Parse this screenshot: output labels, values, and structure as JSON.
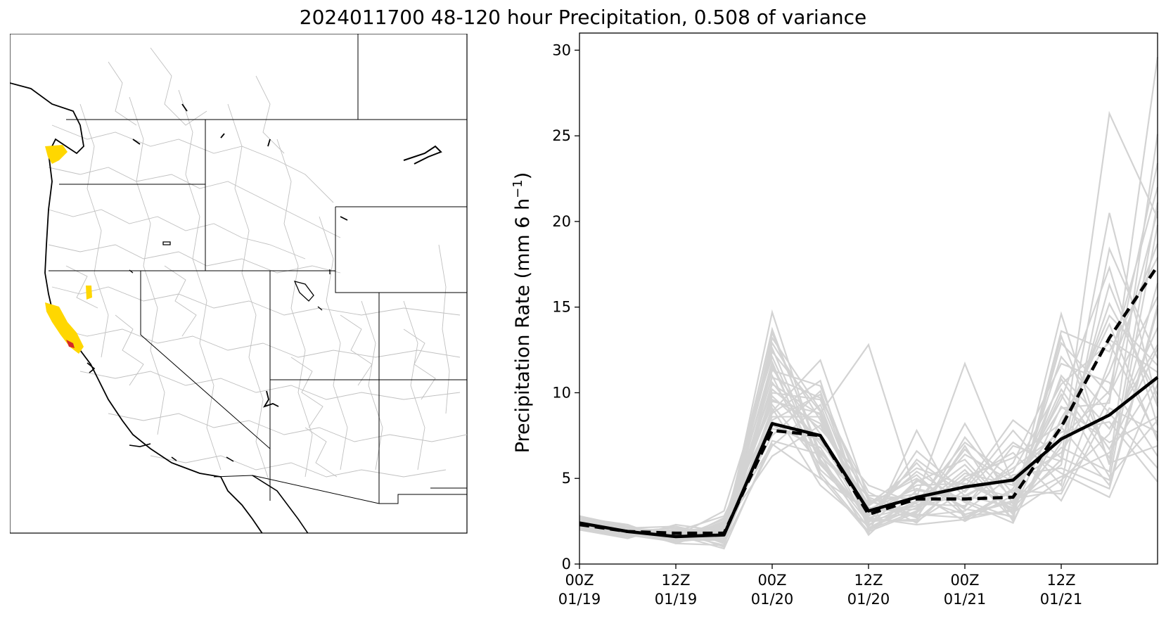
{
  "figure": {
    "title": "2024011700 48-120 hour Precipitation, 0.508 of variance"
  },
  "map": {
    "description_colors": {
      "border": "#000000",
      "basins": "#bdbdbd",
      "highlight_yellow": "#ffd700",
      "highlight_red": "#d62728"
    }
  },
  "chart_data": {
    "type": "line",
    "ylabel_text": "Precipitation Rate (mm 6 h",
    "ylabel_superscript": "−1",
    "ylabel_close": ")",
    "ylim": [
      0,
      31
    ],
    "yticks": [
      0,
      5,
      10,
      15,
      20,
      25,
      30
    ],
    "xlim": [
      0,
      18
    ],
    "xticks": [
      {
        "x": 0,
        "line1": "00Z",
        "line2": "01/19"
      },
      {
        "x": 3,
        "line1": "12Z",
        "line2": "01/19"
      },
      {
        "x": 6,
        "line1": "00Z",
        "line2": "01/20"
      },
      {
        "x": 9,
        "line1": "12Z",
        "line2": "01/20"
      },
      {
        "x": 12,
        "line1": "00Z",
        "line2": "01/21"
      },
      {
        "x": 15,
        "line1": "12Z",
        "line2": "01/21"
      }
    ],
    "x": [
      0,
      1.5,
      3,
      4.5,
      6,
      7.5,
      9,
      10.5,
      12,
      13.5,
      15,
      16.5,
      18
    ],
    "ensemble_color": "#d3d3d3",
    "ensemble_mean": {
      "style": "solid",
      "color": "#000000",
      "values": [
        2.4,
        1.9,
        1.6,
        1.7,
        8.2,
        7.5,
        3.1,
        3.9,
        4.5,
        4.9,
        7.3,
        8.7,
        10.9
      ]
    },
    "reconstruction": {
      "style": "dashed",
      "color": "#000000",
      "values": [
        2.3,
        1.9,
        1.8,
        1.8,
        7.8,
        7.5,
        2.9,
        3.8,
        3.8,
        3.9,
        8.0,
        13.2,
        17.4
      ]
    },
    "ensemble_members": [
      [
        2.8,
        2.1,
        1.5,
        1.4,
        14.7,
        6.1,
        2.7,
        3.4,
        4.0,
        3.3,
        6.1,
        26.3,
        20.2
      ],
      [
        2.3,
        1.8,
        1.8,
        2.1,
        9.5,
        8.8,
        12.8,
        3.9,
        11.7,
        4.7,
        9.1,
        9.4,
        29.6
      ],
      [
        2.5,
        2.2,
        1.4,
        1.7,
        11.8,
        5.1,
        1.8,
        7.8,
        2.6,
        3.2,
        14.6,
        5.8,
        25.1
      ],
      [
        2.1,
        1.6,
        2.0,
        1.8,
        8.9,
        11.9,
        3.8,
        2.4,
        5.1,
        6.2,
        8.2,
        14.0,
        7.2
      ],
      [
        2.6,
        2.0,
        1.2,
        1.1,
        13.2,
        9.0,
        2.6,
        3.0,
        6.7,
        3.8,
        4.3,
        11.8,
        22.0
      ],
      [
        2.2,
        1.7,
        1.9,
        2.2,
        6.3,
        8.1,
        3.5,
        5.0,
        3.2,
        2.8,
        12.9,
        9.9,
        15.6
      ],
      [
        2.4,
        1.9,
        1.6,
        3.1,
        12.1,
        5.9,
        2.1,
        3.6,
        4.5,
        8.4,
        6.2,
        4.9,
        19.8
      ],
      [
        2.7,
        2.3,
        1.3,
        1.6,
        9.8,
        7.2,
        2.9,
        5.9,
        2.9,
        3.6,
        5.8,
        20.5,
        9.4
      ],
      [
        2.0,
        1.5,
        2.3,
        1.9,
        10.9,
        9.7,
        4.2,
        2.7,
        7.4,
        4.1,
        10.8,
        6.7,
        12.6
      ],
      [
        2.5,
        2.1,
        1.7,
        0.9,
        7.2,
        6.4,
        1.7,
        4.3,
        3.9,
        5.6,
        7.7,
        8.3,
        4.8
      ],
      [
        2.3,
        1.8,
        1.4,
        2.5,
        11.3,
        10.4,
        3.1,
        3.2,
        5.5,
        2.6,
        13.6,
        12.4,
        17.9
      ],
      [
        2.6,
        1.9,
        2.1,
        1.3,
        8.1,
        6.8,
        2.4,
        6.6,
        4.2,
        7.1,
        5.3,
        3.9,
        10.5
      ],
      [
        2.2,
        2.0,
        1.5,
        2.0,
        12.9,
        8.4,
        3.3,
        2.9,
        2.7,
        4.4,
        9.6,
        17.3,
        8.1
      ],
      [
        2.4,
        1.6,
        1.8,
        1.5,
        9.1,
        4.6,
        2.2,
        4.8,
        6.1,
        3.0,
        4.9,
        7.6,
        13.8
      ],
      [
        2.8,
        2.2,
        1.3,
        2.4,
        10.2,
        7.9,
        4.6,
        3.5,
        3.4,
        5.9,
        11.7,
        10.6,
        6.3
      ],
      [
        2.1,
        1.7,
        2.2,
        1.2,
        6.9,
        9.3,
        2.0,
        3.1,
        8.2,
        3.5,
        6.8,
        5.4,
        21.1
      ],
      [
        2.5,
        1.9,
        1.6,
        1.8,
        11.6,
        5.5,
        3.0,
        5.4,
        3.6,
        2.4,
        8.5,
        13.1,
        11.2
      ],
      [
        2.3,
        2.1,
        1.9,
        2.8,
        8.6,
        8.6,
        2.5,
        2.6,
        4.9,
        6.5,
        3.7,
        9.1,
        7.7
      ],
      [
        2.6,
        1.8,
        1.4,
        1.4,
        13.7,
        6.3,
        3.6,
        4.1,
        2.5,
        4.0,
        10.2,
        6.2,
        16.4
      ],
      [
        2.2,
        2.0,
        1.7,
        2.3,
        7.5,
        10.1,
        2.3,
        3.7,
        5.8,
        2.9,
        7.1,
        15.2,
        9.9
      ],
      [
        2.4,
        1.7,
        2.0,
        1.0,
        10.6,
        7.0,
        3.9,
        2.8,
        3.1,
        5.2,
        5.6,
        4.4,
        14.9
      ],
      [
        2.7,
        2.1,
        1.5,
        2.6,
        9.3,
        5.8,
        2.8,
        4.6,
        4.7,
        3.4,
        12.1,
        8.8,
        5.6
      ],
      [
        2.0,
        1.6,
        1.8,
        1.7,
        12.4,
        8.9,
        2.1,
        3.3,
        6.4,
        4.8,
        6.5,
        11.2,
        18.7
      ],
      [
        2.5,
        2.2,
        1.2,
        2.1,
        8.3,
        6.6,
        3.4,
        5.2,
        2.8,
        3.1,
        9.2,
        7.1,
        8.6
      ],
      [
        2.3,
        1.9,
        2.1,
        1.5,
        10.0,
        9.6,
        2.6,
        2.5,
        4.3,
        7.8,
        4.6,
        18.4,
        12.0
      ],
      [
        2.6,
        1.8,
        1.6,
        2.2,
        7.9,
        7.3,
        3.2,
        4.4,
        3.7,
        2.7,
        13.3,
        5.9,
        6.9
      ],
      [
        2.1,
        2.0,
        1.9,
        1.3,
        11.0,
        5.3,
        1.9,
        3.0,
        5.3,
        4.6,
        7.4,
        10.1,
        23.4
      ],
      [
        2.4,
        1.7,
        1.3,
        2.7,
        9.6,
        8.2,
        4.0,
        3.8,
        2.9,
        3.7,
        5.1,
        6.5,
        10.9
      ],
      [
        2.8,
        2.1,
        2.2,
        1.6,
        12.6,
        6.0,
        2.4,
        6.1,
        4.0,
        5.4,
        10.5,
        12.9,
        7.4
      ],
      [
        2.2,
        1.9,
        1.5,
        1.9,
        8.4,
        9.9,
        3.7,
        2.7,
        6.9,
        2.5,
        8.0,
        4.6,
        15.1
      ],
      [
        2.5,
        1.6,
        1.8,
        1.1,
        11.4,
        7.6,
        2.2,
        4.9,
        3.3,
        6.9,
        6.0,
        16.3,
        9.2
      ],
      [
        2.3,
        2.2,
        1.4,
        2.4,
        7.0,
        5.0,
        3.1,
        3.4,
        5.0,
        3.2,
        11.0,
        7.9,
        12.8
      ],
      [
        2.7,
        1.8,
        2.0,
        1.8,
        10.5,
        8.7,
        2.7,
        2.3,
        2.6,
        4.3,
        4.1,
        9.7,
        20.6
      ],
      [
        2.0,
        2.0,
        1.7,
        2.0,
        13.5,
        6.5,
        3.5,
        5.6,
        4.6,
        3.9,
        9.9,
        5.1,
        8.4
      ],
      [
        2.4,
        1.9,
        1.9,
        1.4,
        8.8,
        10.7,
        2.0,
        3.6,
        7.1,
        5.0,
        7.9,
        14.5,
        11.6
      ]
    ]
  }
}
